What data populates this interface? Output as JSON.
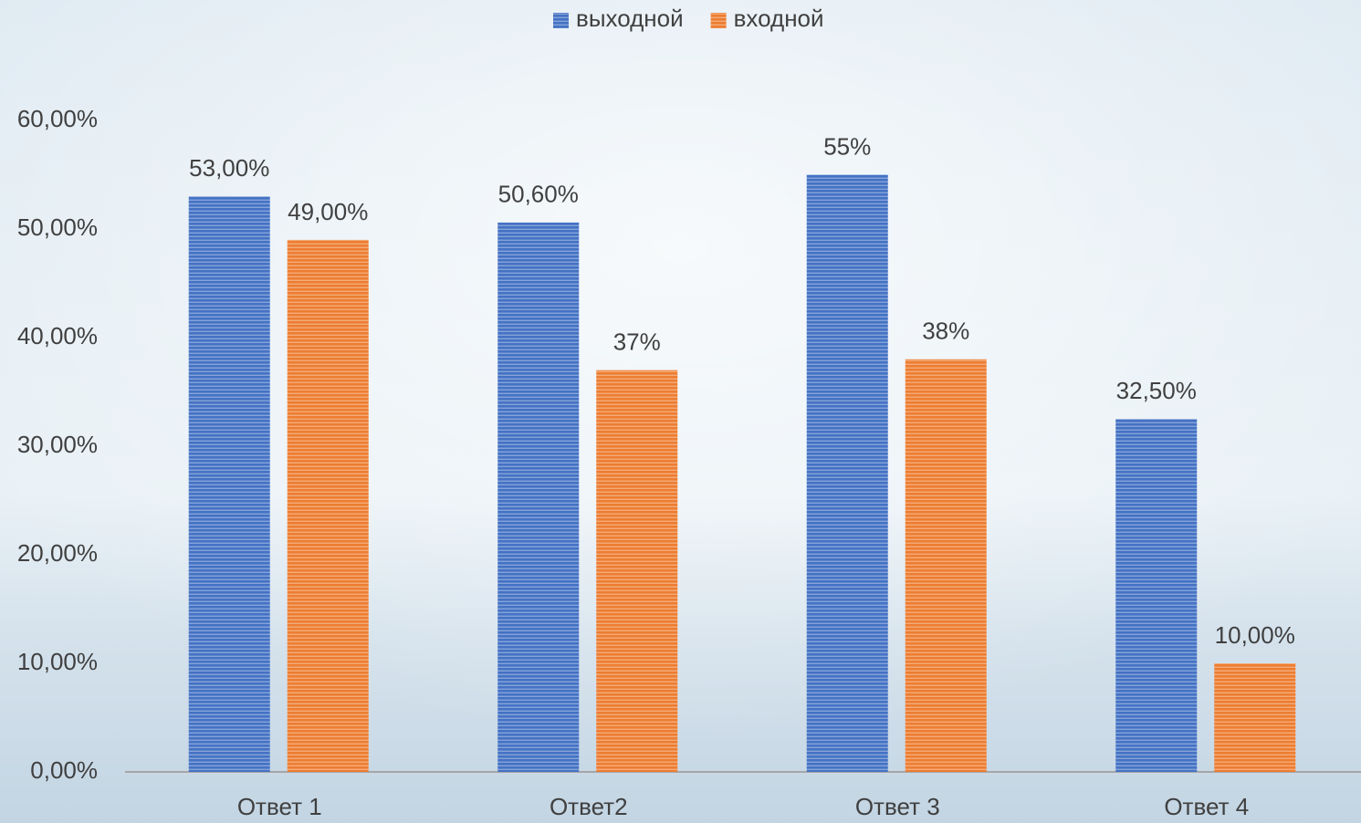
{
  "chart_data": {
    "type": "bar",
    "categories": [
      "Ответ 1",
      "Ответ2",
      "Ответ 3",
      "Ответ 4"
    ],
    "series": [
      {
        "name": "выходной",
        "color": "#4472c4",
        "values": [
          53,
          50.6,
          55,
          32.5
        ],
        "value_labels": [
          "53,00%",
          "50,60%",
          "55%",
          "32,50%"
        ]
      },
      {
        "name": "входной",
        "color": "#ed7d31",
        "values": [
          49,
          37,
          38,
          10
        ],
        "value_labels": [
          "49,00%",
          "37%",
          "38%",
          "10,00%"
        ]
      }
    ],
    "ylim": [
      0,
      60
    ],
    "yticks": [
      {
        "value": 0,
        "label": "0,00%"
      },
      {
        "value": 10,
        "label": "10,00%"
      },
      {
        "value": 20,
        "label": "20,00%"
      },
      {
        "value": 30,
        "label": "30,00%"
      },
      {
        "value": 40,
        "label": "40,00%"
      },
      {
        "value": 50,
        "label": "50,00%"
      },
      {
        "value": 60,
        "label": "60,00%"
      }
    ],
    "grid": false,
    "legend": "top"
  }
}
